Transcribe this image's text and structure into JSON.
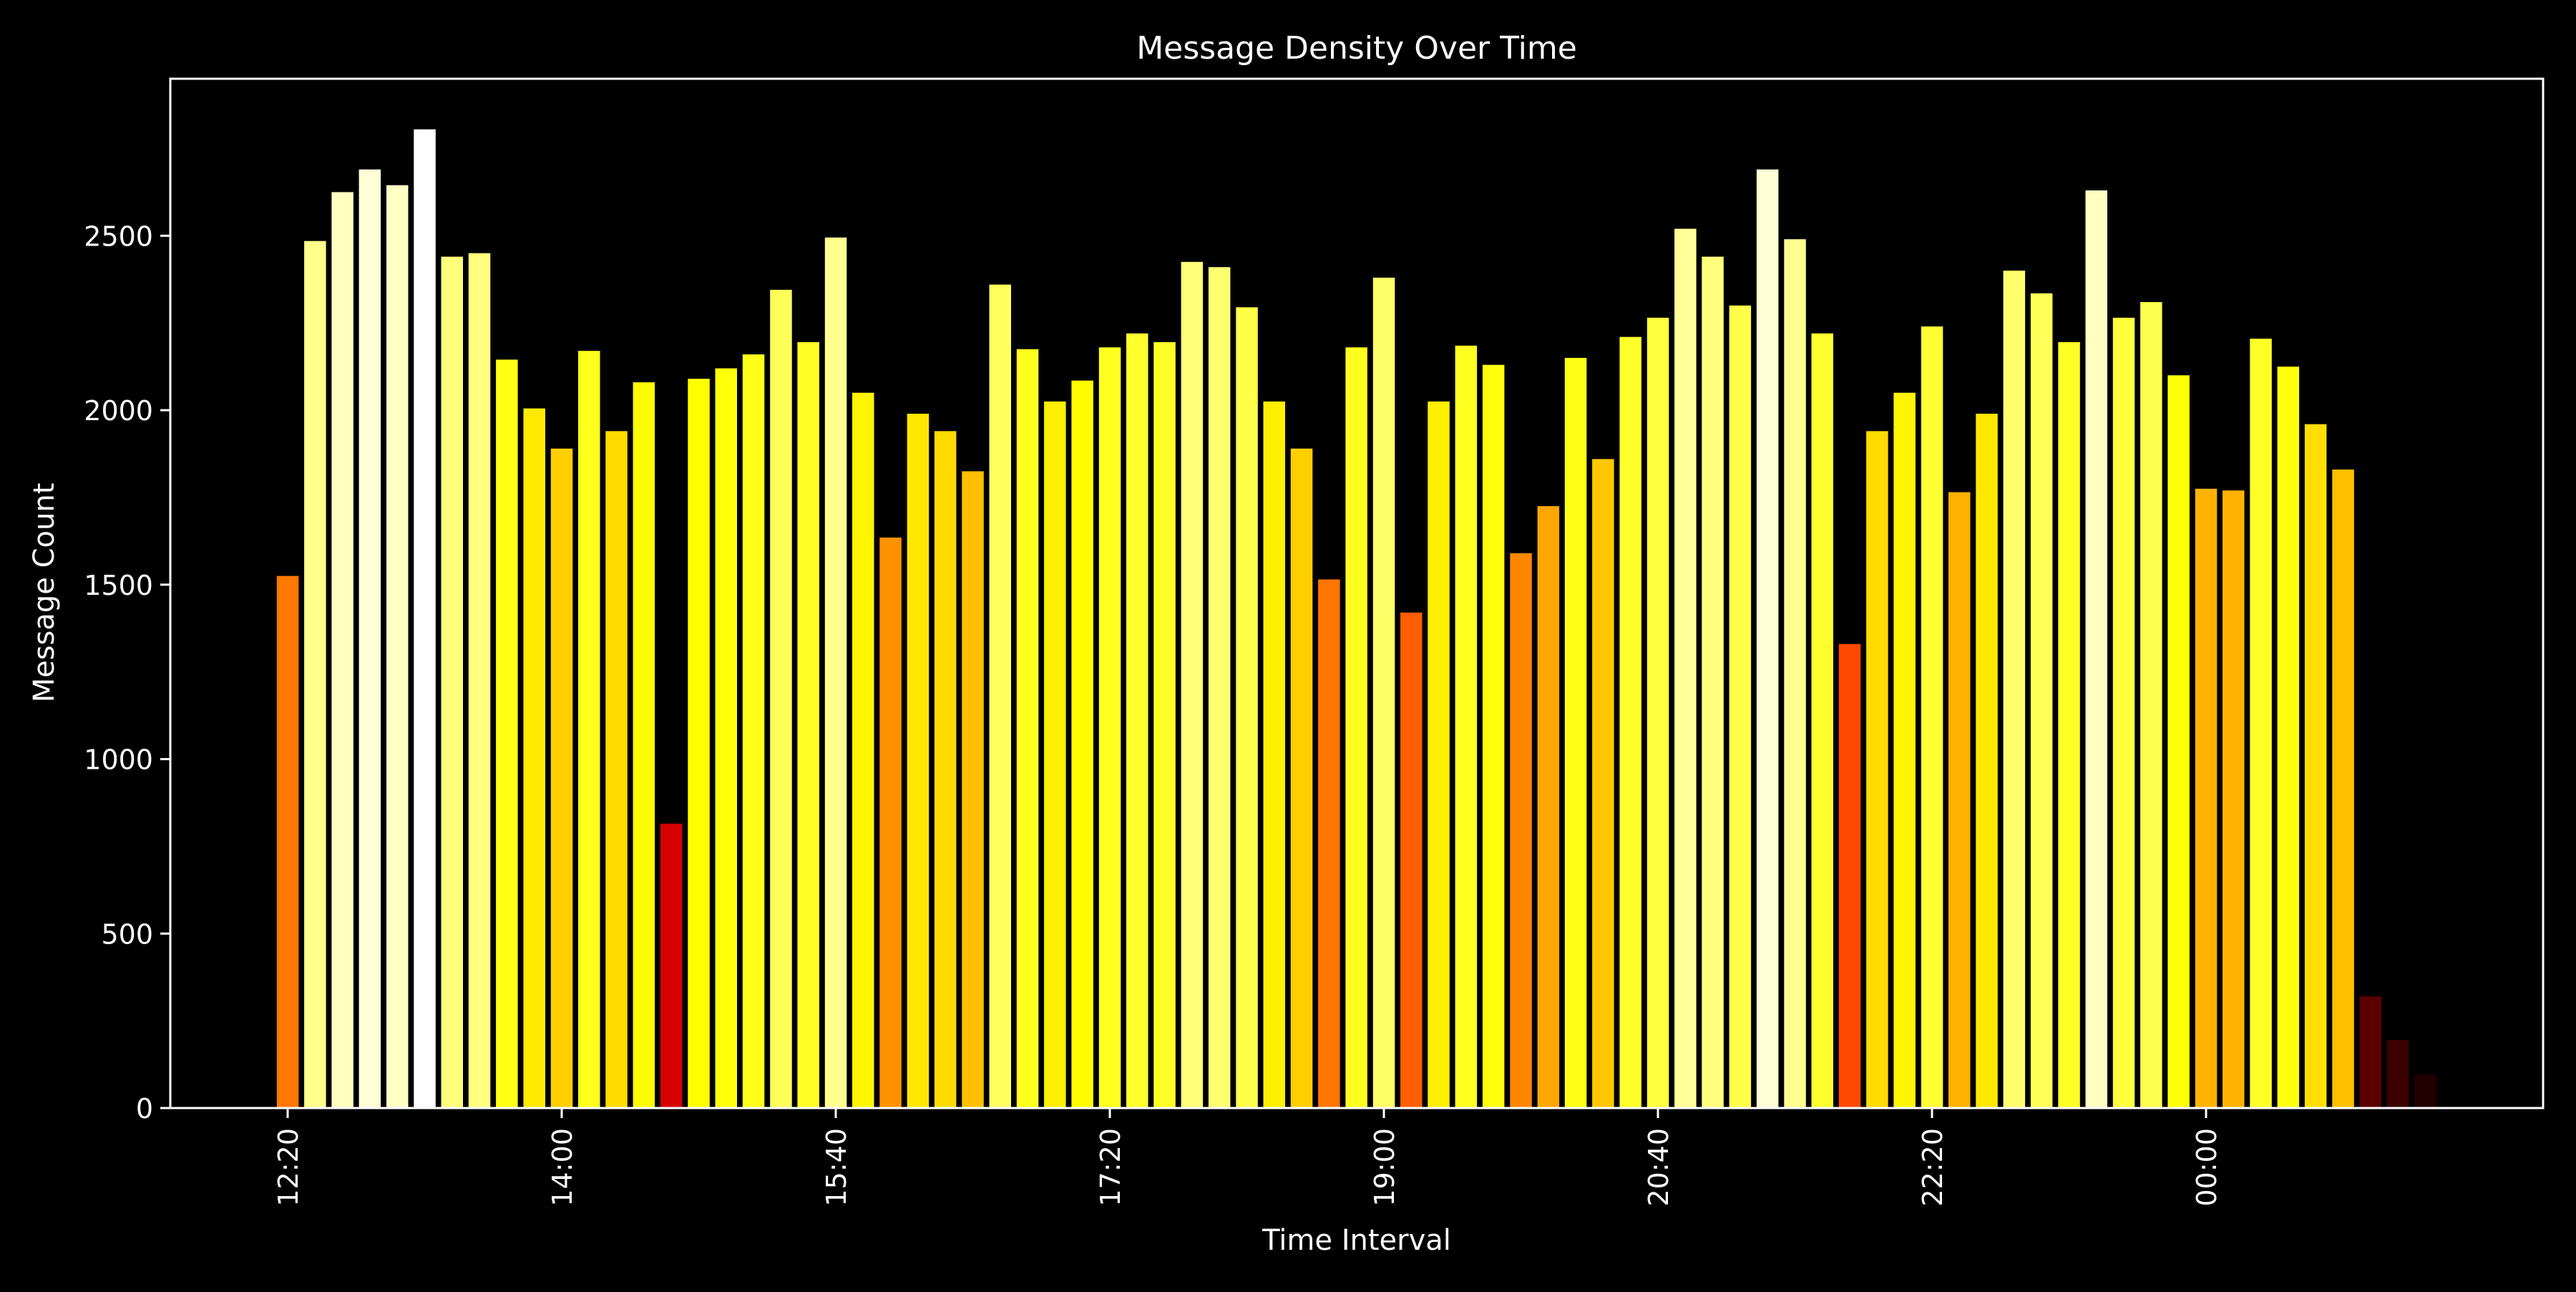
{
  "chart_data": {
    "type": "bar",
    "title": "Message Density Over Time",
    "xlabel": "Time Interval",
    "ylabel": "Message Count",
    "ylim": [
      0,
      2950
    ],
    "yticks": [
      0,
      500,
      1000,
      1500,
      2000,
      2500
    ],
    "ytick_labels": [
      "0",
      "500",
      "1000",
      "1500",
      "2000",
      "2500"
    ],
    "xticks": [
      {
        "index": 0,
        "label": "12:20"
      },
      {
        "index": 10,
        "label": "14:00"
      },
      {
        "index": 20,
        "label": "15:40"
      },
      {
        "index": 30,
        "label": "17:20"
      },
      {
        "index": 40,
        "label": "19:00"
      },
      {
        "index": 50,
        "label": "20:40"
      },
      {
        "index": 60,
        "label": "22:20"
      },
      {
        "index": 70,
        "label": "00:00"
      }
    ],
    "grid": false,
    "legend": "none",
    "colormap": "hot",
    "colors": {
      "background": "#000000",
      "axes": "#ffffff",
      "text": "#ffffff"
    },
    "values": [
      1525,
      2485,
      2625,
      2690,
      2645,
      2805,
      2440,
      2450,
      2145,
      2005,
      1890,
      2170,
      1940,
      2080,
      815,
      2090,
      2120,
      2160,
      2345,
      2195,
      2495,
      2050,
      1635,
      1990,
      1940,
      1825,
      2360,
      2175,
      2025,
      2085,
      2180,
      2220,
      2195,
      2425,
      2410,
      2295,
      2025,
      1890,
      1515,
      2180,
      2380,
      1420,
      2025,
      2185,
      2130,
      1590,
      1725,
      2150,
      1860,
      2210,
      2265,
      2520,
      2440,
      2300,
      2690,
      2490,
      2220,
      1330,
      1940,
      2050,
      2240,
      1765,
      1990,
      2400,
      2335,
      2195,
      2630,
      2265,
      2310,
      2100,
      1775,
      1770,
      2205,
      2125,
      1960,
      1830,
      320,
      195,
      95
    ]
  }
}
